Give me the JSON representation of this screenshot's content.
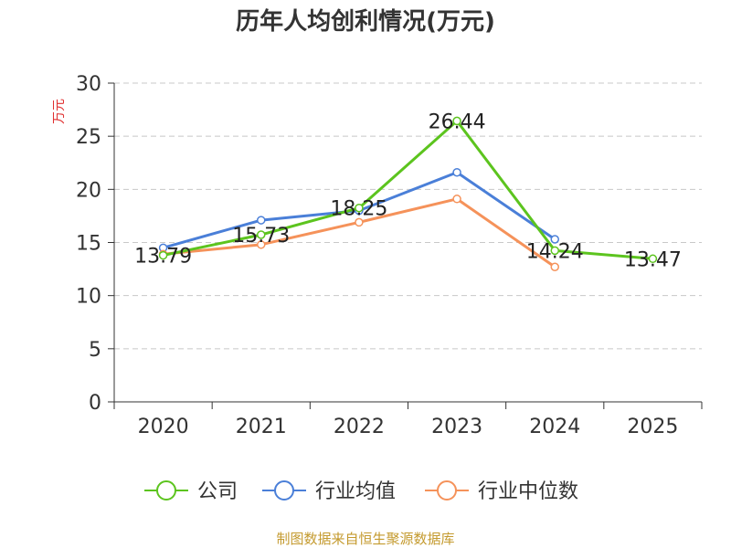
{
  "chart_data": {
    "type": "line",
    "title": "历年人均创利情况(万元)",
    "ylabel": "万元",
    "xlabel": "",
    "categories": [
      "2020",
      "2021",
      "2022",
      "2023",
      "2024",
      "2025"
    ],
    "ylim": [
      0,
      30
    ],
    "yticks": [
      0,
      5,
      10,
      15,
      20,
      25,
      30
    ],
    "grid": true,
    "legend_position": "bottom",
    "series": [
      {
        "name": "公司",
        "color": "#5cc41e",
        "values": [
          13.79,
          15.73,
          18.25,
          26.44,
          14.24,
          13.47
        ],
        "labels": [
          "13.79",
          "15.73",
          "18.25",
          "26.44",
          "14.24",
          "13.47"
        ]
      },
      {
        "name": "行业均值",
        "color": "#4a7fd8",
        "values": [
          14.5,
          17.1,
          18.0,
          21.6,
          15.3,
          null
        ]
      },
      {
        "name": "行业中位数",
        "color": "#f5925a",
        "values": [
          13.9,
          14.8,
          16.9,
          19.1,
          12.7,
          null
        ]
      }
    ],
    "source": "制图数据来自恒生聚源数据库"
  }
}
